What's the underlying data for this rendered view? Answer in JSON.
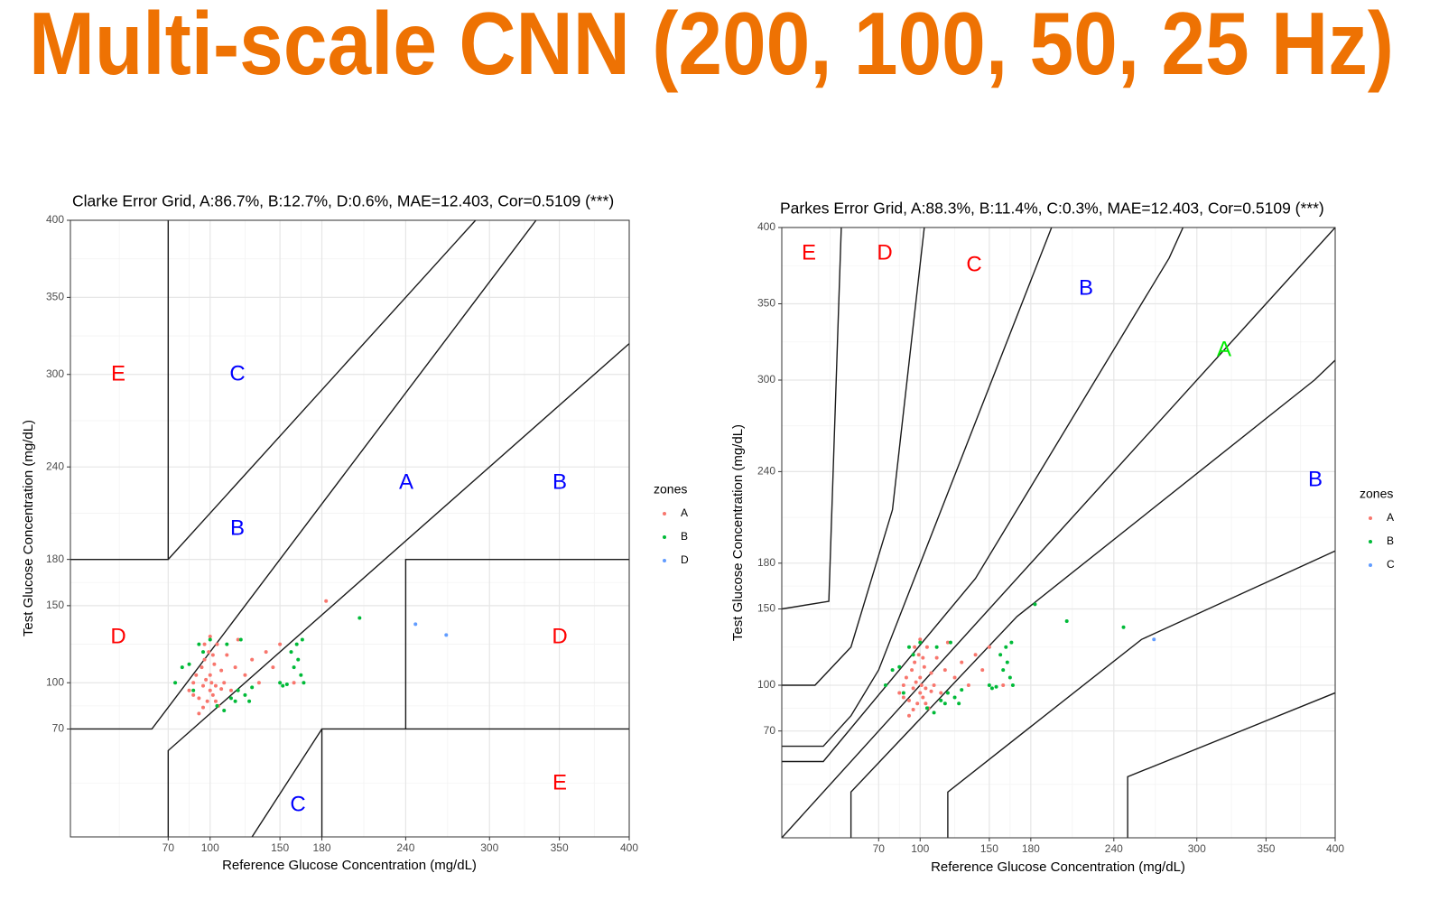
{
  "title": "Multi-scale CNN (200, 100, 50, 25 Hz)",
  "chart_data": [
    {
      "type": "scatter",
      "title": "Clarke Error Grid, A:86.7%, B:12.7%, D:0.6%, MAE=12.403, Cor=0.5109 (***)",
      "x_label": "Reference Glucose Concentration (mg/dL)",
      "y_label": "Test Glucose Concentration (mg/dL)",
      "xlim": [
        0,
        400
      ],
      "ylim": [
        0,
        400
      ],
      "xticks": [
        70,
        100,
        150,
        180,
        240,
        300,
        350,
        400
      ],
      "yticks": [
        70,
        100,
        150,
        180,
        240,
        300,
        350,
        400
      ],
      "grid": true,
      "legend_title": "zones",
      "series": [
        {
          "name": "A",
          "color": "#F8766D",
          "x": [
            85,
            88,
            90,
            92,
            94,
            95,
            96,
            97,
            98,
            99,
            100,
            100,
            101,
            102,
            103,
            104,
            105,
            106,
            108,
            110,
            112,
            115,
            118,
            120,
            125,
            130,
            135,
            140,
            145,
            150,
            160,
            183,
            92,
            96,
            100,
            104,
            108,
            88,
            95,
            102
          ],
          "y": [
            95,
            100,
            105,
            90,
            110,
            98,
            115,
            102,
            88,
            120,
            95,
            105,
            100,
            92,
            112,
            98,
            125,
            85,
            108,
            100,
            118,
            95,
            110,
            128,
            105,
            115,
            100,
            120,
            110,
            125,
            100,
            153,
            80,
            125,
            130,
            88,
            96,
            92,
            84,
            118
          ]
        },
        {
          "name": "B",
          "color": "#00BA38",
          "x": [
            75,
            80,
            85,
            88,
            92,
            95,
            100,
            105,
            110,
            115,
            118,
            120,
            125,
            128,
            130,
            150,
            152,
            155,
            158,
            160,
            162,
            163,
            165,
            166,
            167,
            207,
            112,
            122
          ],
          "y": [
            100,
            110,
            112,
            95,
            125,
            120,
            128,
            85,
            82,
            90,
            88,
            95,
            92,
            88,
            97,
            100,
            98,
            99,
            120,
            110,
            125,
            115,
            105,
            128,
            100,
            142,
            125,
            128
          ]
        },
        {
          "name": "D",
          "color": "#619CFF",
          "x": [
            247,
            269
          ],
          "y": [
            138,
            131
          ]
        }
      ],
      "annotations": [
        {
          "text": "E",
          "color": "#ff0000"
        },
        {
          "text": "C",
          "color": "#0000ff"
        },
        {
          "text": "A",
          "color": "#0000ff"
        },
        {
          "text": "B",
          "color": "#0000ff"
        },
        {
          "text": "B",
          "color": "#0000ff"
        },
        {
          "text": "D",
          "color": "#ff0000"
        },
        {
          "text": "D",
          "color": "#ff0000"
        },
        {
          "text": "C",
          "color": "#0000ff"
        },
        {
          "text": "E",
          "color": "#ff0000"
        }
      ]
    },
    {
      "type": "scatter",
      "title": "Parkes Error Grid, A:88.3%, B:11.4%, C:0.3%, MAE=12.403, Cor=0.5109 (***)",
      "x_label": "Reference Glucose Concentration (mg/dL)",
      "y_label": "Test Glucose Concentration (mg/dL)",
      "xlim": [
        0,
        400
      ],
      "ylim": [
        0,
        400
      ],
      "xticks": [
        70,
        100,
        150,
        180,
        240,
        300,
        350,
        400
      ],
      "yticks": [
        70,
        100,
        150,
        180,
        240,
        300,
        350,
        400
      ],
      "grid": true,
      "legend_title": "zones",
      "series": [
        {
          "name": "A",
          "color": "#F8766D",
          "x": [
            85,
            88,
            90,
            92,
            94,
            95,
            96,
            97,
            98,
            99,
            100,
            100,
            101,
            102,
            103,
            104,
            105,
            106,
            108,
            110,
            112,
            115,
            118,
            120,
            125,
            130,
            135,
            140,
            145,
            150,
            160,
            92,
            96,
            100,
            104,
            108,
            88,
            95,
            102
          ],
          "y": [
            95,
            100,
            105,
            90,
            110,
            98,
            115,
            102,
            88,
            120,
            95,
            105,
            100,
            92,
            112,
            98,
            125,
            85,
            108,
            100,
            118,
            95,
            110,
            128,
            105,
            115,
            100,
            120,
            110,
            125,
            100,
            80,
            125,
            130,
            88,
            96,
            92,
            84,
            118
          ]
        },
        {
          "name": "B",
          "color": "#00BA38",
          "x": [
            75,
            80,
            85,
            88,
            92,
            95,
            100,
            105,
            110,
            115,
            118,
            120,
            125,
            128,
            130,
            150,
            152,
            155,
            158,
            160,
            162,
            163,
            165,
            166,
            167,
            183,
            206,
            247,
            112,
            122
          ],
          "y": [
            100,
            110,
            112,
            95,
            125,
            120,
            128,
            85,
            82,
            90,
            88,
            95,
            92,
            88,
            97,
            100,
            98,
            99,
            120,
            110,
            125,
            115,
            105,
            128,
            100,
            153,
            142,
            138,
            125,
            128
          ]
        },
        {
          "name": "C",
          "color": "#619CFF",
          "x": [
            269
          ],
          "y": [
            130
          ]
        }
      ],
      "annotations": [
        {
          "text": "E",
          "color": "#ff0000"
        },
        {
          "text": "D",
          "color": "#ff0000"
        },
        {
          "text": "C",
          "color": "#ff0000"
        },
        {
          "text": "B",
          "color": "#0000ff"
        },
        {
          "text": "A",
          "color": "#00ee00"
        },
        {
          "text": "B",
          "color": "#0000ff"
        }
      ]
    }
  ]
}
